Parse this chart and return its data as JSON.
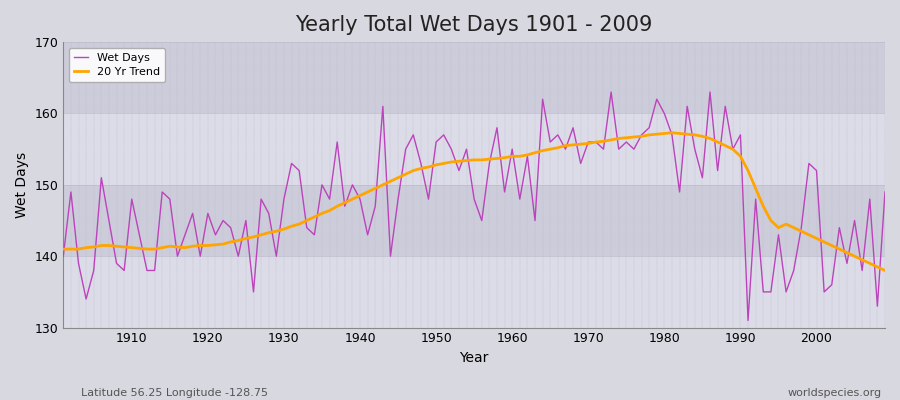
{
  "title": "Yearly Total Wet Days 1901 - 2009",
  "xlabel": "Year",
  "ylabel": "Wet Days",
  "subtitle": "Latitude 56.25 Longitude -128.75",
  "watermark": "worldspecies.org",
  "ylim": [
    130,
    170
  ],
  "xlim": [
    1901,
    2009
  ],
  "wet_days_color": "#BB44BB",
  "trend_color": "#FFA500",
  "bg_color": "#E0E0E8",
  "plot_bg_light": "#DCDCE8",
  "plot_bg_dark": "#C8C8D8",
  "grid_color": "#BBBBCC",
  "legend_labels": [
    "Wet Days",
    "20 Yr Trend"
  ],
  "years": [
    1901,
    1902,
    1903,
    1904,
    1905,
    1906,
    1907,
    1908,
    1909,
    1910,
    1911,
    1912,
    1913,
    1914,
    1915,
    1916,
    1917,
    1918,
    1919,
    1920,
    1921,
    1922,
    1923,
    1924,
    1925,
    1926,
    1927,
    1928,
    1929,
    1930,
    1931,
    1932,
    1933,
    1934,
    1935,
    1936,
    1937,
    1938,
    1939,
    1940,
    1941,
    1942,
    1943,
    1944,
    1945,
    1946,
    1947,
    1948,
    1949,
    1950,
    1951,
    1952,
    1953,
    1954,
    1955,
    1956,
    1957,
    1958,
    1959,
    1960,
    1961,
    1962,
    1963,
    1964,
    1965,
    1966,
    1967,
    1968,
    1969,
    1970,
    1971,
    1972,
    1973,
    1974,
    1975,
    1976,
    1977,
    1978,
    1979,
    1980,
    1981,
    1982,
    1983,
    1984,
    1985,
    1986,
    1987,
    1988,
    1989,
    1990,
    1991,
    1992,
    1993,
    1994,
    1995,
    1996,
    1997,
    1998,
    1999,
    2000,
    2001,
    2002,
    2003,
    2004,
    2005,
    2006,
    2007,
    2008,
    2009
  ],
  "wet_days": [
    140,
    149,
    139,
    134,
    138,
    151,
    145,
    139,
    138,
    148,
    143,
    138,
    138,
    149,
    148,
    140,
    143,
    146,
    140,
    146,
    143,
    145,
    144,
    140,
    145,
    135,
    148,
    146,
    140,
    148,
    153,
    152,
    144,
    143,
    150,
    148,
    156,
    147,
    150,
    148,
    143,
    147,
    161,
    140,
    148,
    155,
    157,
    153,
    148,
    156,
    157,
    155,
    152,
    155,
    148,
    145,
    153,
    158,
    149,
    155,
    148,
    154,
    145,
    162,
    156,
    157,
    155,
    158,
    153,
    156,
    156,
    155,
    163,
    155,
    156,
    155,
    157,
    158,
    162,
    160,
    157,
    149,
    161,
    155,
    151,
    163,
    152,
    161,
    155,
    157,
    131,
    148,
    135,
    135,
    143,
    135,
    138,
    144,
    153,
    152,
    135,
    136,
    144,
    139,
    145,
    138,
    148,
    133,
    149
  ],
  "trend": [
    141.0,
    141.0,
    141.0,
    141.2,
    141.3,
    141.5,
    141.5,
    141.4,
    141.3,
    141.2,
    141.1,
    141.0,
    141.0,
    141.2,
    141.4,
    141.3,
    141.2,
    141.4,
    141.5,
    141.5,
    141.6,
    141.7,
    142.0,
    142.2,
    142.5,
    142.7,
    143.0,
    143.3,
    143.5,
    143.8,
    144.2,
    144.5,
    145.0,
    145.5,
    146.0,
    146.4,
    147.0,
    147.5,
    148.0,
    148.5,
    149.0,
    149.5,
    150.0,
    150.5,
    151.0,
    151.5,
    152.0,
    152.3,
    152.5,
    152.8,
    153.0,
    153.2,
    153.3,
    153.4,
    153.5,
    153.5,
    153.6,
    153.7,
    153.8,
    154.0,
    154.0,
    154.2,
    154.5,
    154.8,
    155.0,
    155.2,
    155.5,
    155.6,
    155.7,
    155.8,
    156.0,
    156.1,
    156.3,
    156.5,
    156.6,
    156.7,
    156.8,
    157.0,
    157.1,
    157.2,
    157.3,
    157.2,
    157.1,
    157.0,
    156.8,
    156.5,
    156.0,
    155.5,
    155.0,
    154.0,
    152.0,
    149.5,
    147.0,
    145.0,
    144.0,
    144.5,
    144.0,
    143.5,
    143.0,
    142.5,
    142.0,
    141.5,
    141.0,
    140.5,
    140.0,
    139.5,
    139.0,
    138.5,
    138.0
  ]
}
